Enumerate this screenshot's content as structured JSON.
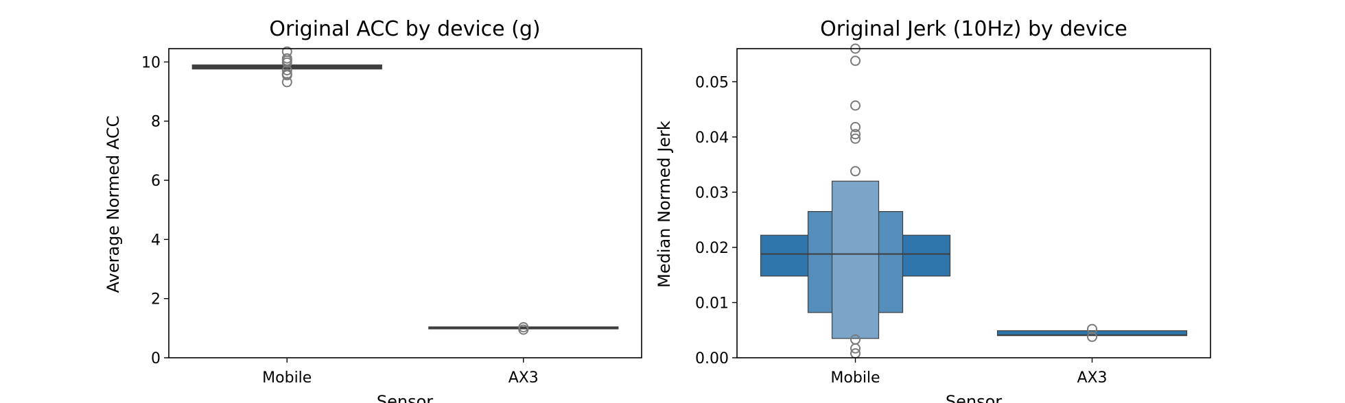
{
  "chart_data": [
    {
      "type": "boxen",
      "title": "Original ACC by device (g)",
      "xlabel": "Sensor",
      "ylabel": "Average Normed ACC",
      "categories": [
        "Mobile",
        "AX3"
      ],
      "ylim": [
        0,
        10.45
      ],
      "yticks": [
        "0",
        "2",
        "4",
        "6",
        "8",
        "10"
      ],
      "yticks_values": [
        0,
        2,
        4,
        6,
        8,
        10
      ],
      "color": "#3f3f3f",
      "grid": false,
      "boxes": [
        {
          "category": "Mobile",
          "median": 9.83,
          "levels": [
            [
              9.76,
              9.9
            ],
            [
              9.79,
              9.87
            ],
            [
              9.81,
              9.85
            ]
          ],
          "outliers": [
            9.32,
            9.55,
            9.6,
            9.72,
            9.98,
            10.05,
            10.12,
            10.35
          ]
        },
        {
          "category": "AX3",
          "median": 1.0,
          "levels": [
            [
              0.99,
              1.01
            ]
          ],
          "outliers": [
            0.95,
            1.03
          ]
        }
      ]
    },
    {
      "type": "boxen",
      "title": "Original Jerk (10Hz) by device",
      "xlabel": "Sensor",
      "ylabel": "Median Normed Jerk",
      "categories": [
        "Mobile",
        "AX3"
      ],
      "ylim": [
        0,
        0.056
      ],
      "yticks": [
        "0.00",
        "0.01",
        "0.02",
        "0.03",
        "0.04",
        "0.05"
      ],
      "yticks_values": [
        0,
        0.01,
        0.02,
        0.03,
        0.04,
        0.05
      ],
      "color": "#2e76ac",
      "grid": false,
      "boxes": [
        {
          "category": "Mobile",
          "median": 0.0188,
          "levels": [
            [
              0.0148,
              0.0222
            ],
            [
              0.0082,
              0.0265
            ],
            [
              0.0035,
              0.032
            ]
          ],
          "outliers": [
            0.056,
            0.0538,
            0.0457,
            0.0418,
            0.0405,
            0.0397,
            0.0338,
            0.0033,
            0.0017,
            0.0008
          ]
        },
        {
          "category": "AX3",
          "median": 0.0041,
          "levels": [
            [
              0.004,
              0.0049
            ]
          ],
          "outliers": [
            0.0052,
            0.0038
          ]
        }
      ]
    }
  ]
}
